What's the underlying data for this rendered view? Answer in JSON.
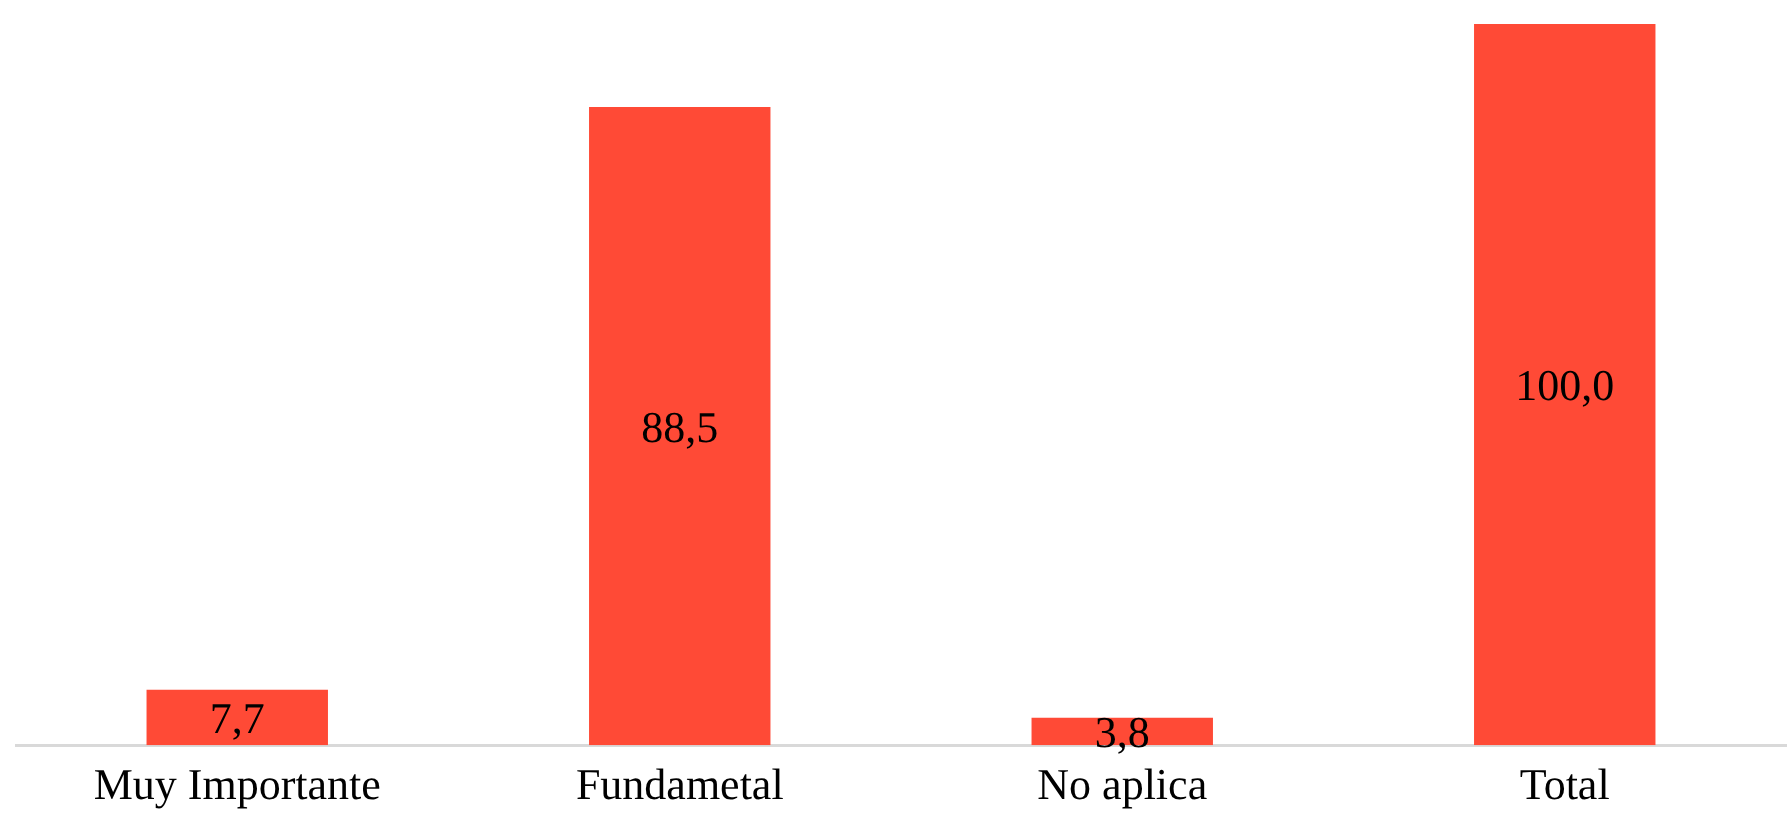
{
  "chart_data": {
    "type": "bar",
    "categories": [
      "Muy Importante",
      "Fundametal",
      "No aplica",
      "Total"
    ],
    "values": [
      7.7,
      88.5,
      3.8,
      100.0
    ],
    "color": "#ff4a36",
    "value_labels": [
      "7,7",
      "88,5",
      "3,8",
      "100,0"
    ],
    "grid": false,
    "legend": false
  }
}
